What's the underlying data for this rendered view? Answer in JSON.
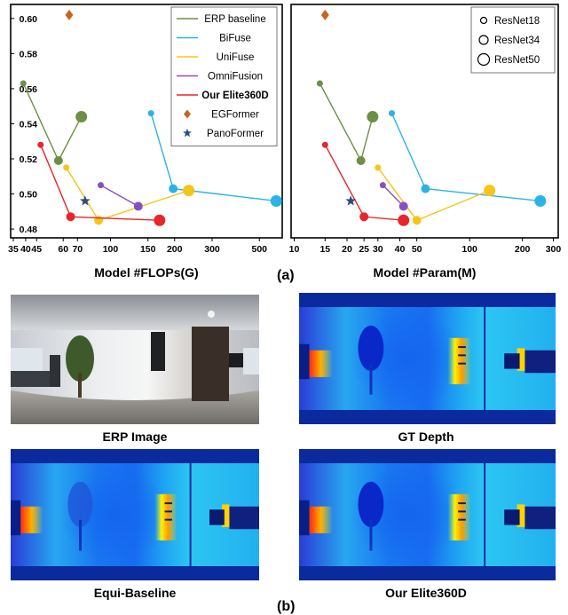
{
  "panel_a_label": "(a)",
  "panel_b_label": "(b)",
  "chart_data": [
    {
      "type": "scatter",
      "xlabel": "Model #FLOPs(G)",
      "ylabel": "",
      "xscale": "log",
      "xticks": [
        35,
        40,
        45,
        60,
        70,
        100,
        150,
        200,
        300,
        500
      ],
      "xtick_labels": [
        "35",
        "40",
        "45",
        "60",
        "70",
        "100",
        "150",
        "200",
        "300",
        "500"
      ],
      "yticks": [
        0.48,
        0.5,
        0.52,
        0.54,
        0.56,
        0.58,
        0.6
      ],
      "ytick_labels": [
        "0.48",
        "0.50",
        "0.52",
        "0.54",
        "0.56",
        "0.58",
        "0.60"
      ],
      "xlim": [
        34,
        640
      ],
      "ylim": [
        0.475,
        0.608
      ],
      "legend_position": "top-right",
      "series": [
        {
          "name": "ERP baseline",
          "color": "#6d8f45",
          "line": true,
          "points": [
            {
              "x": 39,
              "y": 0.563,
              "size": "ResNet18"
            },
            {
              "x": 57,
              "y": 0.519,
              "size": "ResNet34"
            },
            {
              "x": 73,
              "y": 0.544,
              "size": "ResNet50"
            }
          ]
        },
        {
          "name": "BiFuse",
          "color": "#2ab3e6",
          "line": true,
          "points": [
            {
              "x": 155,
              "y": 0.546,
              "size": "ResNet18"
            },
            {
              "x": 197,
              "y": 0.503,
              "size": "ResNet34"
            },
            {
              "x": 600,
              "y": 0.496,
              "size": "ResNet50"
            }
          ]
        },
        {
          "name": "UniFuse",
          "color": "#f5c518",
          "line": true,
          "points": [
            {
              "x": 62,
              "y": 0.515,
              "size": "ResNet18"
            },
            {
              "x": 88,
              "y": 0.485,
              "size": "ResNet34"
            },
            {
              "x": 233,
              "y": 0.502,
              "size": "ResNet50"
            }
          ]
        },
        {
          "name": "OmniFusion",
          "color": "#8a4fbf",
          "line": true,
          "points": [
            {
              "x": 90,
              "y": 0.505,
              "size": "ResNet18"
            },
            {
              "x": 135,
              "y": 0.493,
              "size": "ResNet34"
            }
          ]
        },
        {
          "name": "Our Elite360D",
          "color": "#e8252a",
          "line": true,
          "bold": true,
          "points": [
            {
              "x": 47,
              "y": 0.528,
              "size": "ResNet18"
            },
            {
              "x": 65,
              "y": 0.487,
              "size": "ResNet34"
            },
            {
              "x": 170,
              "y": 0.485,
              "size": "ResNet50"
            }
          ]
        },
        {
          "name": "EGFormer",
          "color": "#c8651b",
          "line": false,
          "marker": "diamond",
          "points": [
            {
              "x": 64,
              "y": 0.602
            }
          ]
        },
        {
          "name": "PanoFormer",
          "color": "#2b4c7e",
          "line": false,
          "marker": "star",
          "points": [
            {
              "x": 76,
              "y": 0.496
            }
          ]
        }
      ]
    },
    {
      "type": "scatter",
      "xlabel": "Model #Param(M)",
      "ylabel": "",
      "xscale": "log",
      "xticks": [
        10,
        15,
        20,
        25,
        30,
        40,
        50,
        100,
        200,
        300
      ],
      "xtick_labels": [
        "10",
        "15",
        "20",
        "25",
        "30",
        "40",
        "50",
        "100",
        "200",
        "300"
      ],
      "ylim": [
        0.475,
        0.608
      ],
      "xlim": [
        9.6,
        320
      ],
      "legend_position": "top-right",
      "size_legend": [
        "ResNet18",
        "ResNet34",
        "ResNet50"
      ],
      "series": [
        {
          "name": "ERP baseline",
          "color": "#6d8f45",
          "line": true,
          "points": [
            {
              "x": 14,
              "y": 0.563,
              "size": "ResNet18"
            },
            {
              "x": 24,
              "y": 0.519,
              "size": "ResNet34"
            },
            {
              "x": 28,
              "y": 0.544,
              "size": "ResNet50"
            }
          ]
        },
        {
          "name": "BiFuse",
          "color": "#2ab3e6",
          "line": true,
          "points": [
            {
              "x": 36,
              "y": 0.546,
              "size": "ResNet18"
            },
            {
              "x": 56,
              "y": 0.503,
              "size": "ResNet34"
            },
            {
              "x": 253,
              "y": 0.496,
              "size": "ResNet50"
            }
          ]
        },
        {
          "name": "UniFuse",
          "color": "#f5c518",
          "line": true,
          "points": [
            {
              "x": 30,
              "y": 0.515,
              "size": "ResNet18"
            },
            {
              "x": 50,
              "y": 0.485,
              "size": "ResNet34"
            },
            {
              "x": 130,
              "y": 0.502,
              "size": "ResNet50"
            }
          ]
        },
        {
          "name": "OmniFusion",
          "color": "#8a4fbf",
          "line": true,
          "points": [
            {
              "x": 32,
              "y": 0.505,
              "size": "ResNet18"
            },
            {
              "x": 42,
              "y": 0.493,
              "size": "ResNet34"
            }
          ]
        },
        {
          "name": "Our Elite360D",
          "color": "#e8252a",
          "line": true,
          "points": [
            {
              "x": 15,
              "y": 0.528,
              "size": "ResNet18"
            },
            {
              "x": 25,
              "y": 0.487,
              "size": "ResNet34"
            },
            {
              "x": 42,
              "y": 0.485,
              "size": "ResNet50"
            }
          ]
        },
        {
          "name": "EGFormer",
          "color": "#c8651b",
          "line": false,
          "marker": "diamond",
          "points": [
            {
              "x": 15,
              "y": 0.602
            }
          ]
        },
        {
          "name": "PanoFormer",
          "color": "#2b4c7e",
          "line": false,
          "marker": "star",
          "points": [
            {
              "x": 21,
              "y": 0.496
            }
          ]
        }
      ]
    }
  ],
  "images": [
    {
      "caption": "ERP Image",
      "kind": "rgb"
    },
    {
      "caption": "GT Depth",
      "kind": "depth"
    },
    {
      "caption": "Equi-Baseline",
      "kind": "depth"
    },
    {
      "caption": "Our Elite360D",
      "kind": "depth"
    }
  ]
}
